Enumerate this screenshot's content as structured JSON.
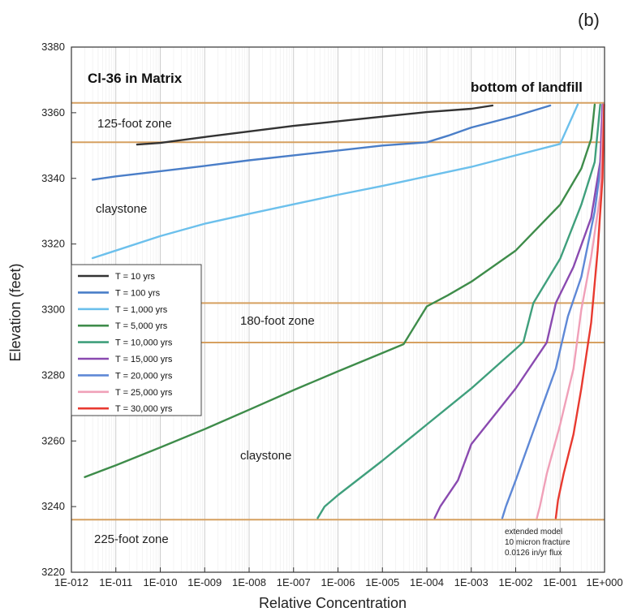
{
  "panel_label": "(b)",
  "chart_data": {
    "type": "line",
    "title": "Cl-36 in Matrix",
    "xlabel": "Relative Concentration",
    "ylabel": "Elevation (feet)",
    "x_scale": "log",
    "xlim": [
      "1E-012",
      "1E+000"
    ],
    "ylim": [
      3220,
      3380
    ],
    "x_ticks": [
      "1E-012",
      "1E-011",
      "1E-010",
      "1E-009",
      "1E-008",
      "1E-007",
      "1E-006",
      "1E-005",
      "1E-004",
      "1E-003",
      "1E-002",
      "1E-001",
      "1E+000"
    ],
    "y_ticks": [
      3220,
      3240,
      3260,
      3280,
      3300,
      3320,
      3340,
      3360,
      3380
    ],
    "grid": "vertical",
    "legend_position": "left-center",
    "boundary_lines": [
      3363,
      3351,
      3302,
      3290,
      3236
    ],
    "boundary_color": "#d6a060",
    "annotations": {
      "bottom_of_landfill": "bottom of landfill",
      "zone_125": "125-foot zone",
      "claystone_upper": "claystone",
      "zone_180": "180-foot zone",
      "claystone_lower": "claystone",
      "zone_225": "225-foot zone",
      "note_line1": "extended model",
      "note_line2": "10 micron fracture",
      "note_line3": "0.0126 in/yr flux"
    },
    "series": [
      {
        "name": "T = 10 yrs",
        "color": "#333333",
        "points": [
          [
            "3E-011",
            3350.3
          ],
          [
            "1E-010",
            3350.8
          ],
          [
            "1E-009",
            3352.6
          ],
          [
            "1E-008",
            3354.3
          ],
          [
            "1E-007",
            3356
          ],
          [
            "1E-006",
            3357.4
          ],
          [
            "1E-005",
            3358.8
          ],
          [
            "1E-004",
            3360.2
          ],
          [
            "1E-003",
            3361.2
          ],
          [
            "3E-003",
            3362.2
          ]
        ]
      },
      {
        "name": "T = 100 yrs",
        "color": "#4a7ec8",
        "points": [
          [
            "3E-012",
            3339.6
          ],
          [
            "1E-011",
            3340.6
          ],
          [
            "1E-010",
            3342.2
          ],
          [
            "1E-009",
            3343.8
          ],
          [
            "1E-008",
            3345.5
          ],
          [
            "1E-007",
            3347
          ],
          [
            "1E-006",
            3348.5
          ],
          [
            "1E-005",
            3350
          ],
          [
            "1E-004",
            3351
          ],
          [
            "3E-004",
            3353
          ],
          [
            "1E-003",
            3355.5
          ],
          [
            "1E-002",
            3359
          ],
          [
            "6E-002",
            3362.2
          ]
        ]
      },
      {
        "name": "T = 1,000 yrs",
        "color": "#6cc0ec",
        "points": [
          [
            "3E-012",
            3315.7
          ],
          [
            "1E-011",
            3318
          ],
          [
            "1E-010",
            3322.4
          ],
          [
            "1E-009",
            3326.2
          ],
          [
            "1E-008",
            3329.2
          ],
          [
            "1E-007",
            3332.1
          ],
          [
            "1E-006",
            3335
          ],
          [
            "1E-005",
            3337.7
          ],
          [
            "1E-004",
            3340.6
          ],
          [
            "1E-003",
            3343.5
          ],
          [
            "1E-002",
            3347
          ],
          [
            "1E-001",
            3350.5
          ],
          [
            "2.5E-001",
            3362.5
          ]
        ]
      },
      {
        "name": "T = 5,000 yrs",
        "color": "#3e8c4a",
        "points": [
          [
            "2E-012",
            3249
          ],
          [
            "1E-011",
            3252.6
          ],
          [
            "1E-010",
            3258
          ],
          [
            "1E-009",
            3263.6
          ],
          [
            "1E-008",
            3269.5
          ],
          [
            "1E-007",
            3275.5
          ],
          [
            "1E-006",
            3281.2
          ],
          [
            "1E-005",
            3286.8
          ],
          [
            "3E-005",
            3289.5
          ],
          [
            "1E-004",
            3301
          ],
          [
            "3E-004",
            3304.4
          ],
          [
            "1E-003",
            3308.5
          ],
          [
            "1E-002",
            3318
          ],
          [
            "1E-001",
            3332
          ],
          [
            "3E-001",
            3343
          ],
          [
            "5E-001",
            3352
          ],
          [
            "6E-001",
            3362.5
          ]
        ]
      },
      {
        "name": "T = 10,000 yrs",
        "color": "#3f9f7c",
        "points": [
          [
            "3.5E-007",
            3236.5
          ],
          [
            "5E-007",
            3240
          ],
          [
            "1E-006",
            3243.5
          ],
          [
            "1E-005",
            3254
          ],
          [
            "1E-004",
            3265
          ],
          [
            "1E-003",
            3276
          ],
          [
            "1E-002",
            3288
          ],
          [
            "1.5E-002",
            3290.2
          ],
          [
            "2.5E-002",
            3302
          ],
          [
            "1E-001",
            3315.5
          ],
          [
            "3E-001",
            3332
          ],
          [
            "6E-001",
            3345
          ],
          [
            "8E-001",
            3362.5
          ]
        ]
      },
      {
        "name": "T = 15,000 yrs",
        "color": "#8a4ab0",
        "points": [
          [
            "1.5E-004",
            3236.5
          ],
          [
            "2E-004",
            3240
          ],
          [
            "5E-004",
            3248
          ],
          [
            "1E-003",
            3259
          ],
          [
            "1E-002",
            3276
          ],
          [
            "5E-002",
            3290
          ],
          [
            "8E-002",
            3302
          ],
          [
            "2E-001",
            3313
          ],
          [
            "5E-001",
            3328
          ],
          [
            "8E-001",
            3345
          ],
          [
            "9E-001",
            3362.5
          ]
        ]
      },
      {
        "name": "T = 20,000 yrs",
        "color": "#5e88d6",
        "points": [
          [
            "5E-003",
            3236.5
          ],
          [
            "6E-003",
            3240
          ],
          [
            "1E-002",
            3248
          ],
          [
            "3E-002",
            3266
          ],
          [
            "8E-002",
            3282
          ],
          [
            "1.5E-001",
            3298
          ],
          [
            "3E-001",
            3310
          ],
          [
            "6E-001",
            3330
          ],
          [
            "9E-001",
            3348
          ],
          [
            "9.5E-001",
            3362.5
          ]
        ]
      },
      {
        "name": "T = 25,000 yrs",
        "color": "#f0a0b8",
        "points": [
          [
            "3E-002",
            3236.5
          ],
          [
            "3.5E-002",
            3240
          ],
          [
            "5E-002",
            3250
          ],
          [
            "1E-001",
            3265
          ],
          [
            "2E-001",
            3282
          ],
          [
            "3E-001",
            3300
          ],
          [
            "5E-001",
            3316
          ],
          [
            "8E-001",
            3335
          ],
          [
            "9.5E-001",
            3362.5
          ]
        ]
      },
      {
        "name": "T = 30,000 yrs",
        "color": "#e83a30",
        "points": [
          [
            "8E-002",
            3236.5
          ],
          [
            "9E-002",
            3242
          ],
          [
            "1.2E-001",
            3250
          ],
          [
            "2E-001",
            3262
          ],
          [
            "3E-001",
            3276
          ],
          [
            "5E-001",
            3296
          ],
          [
            "7E-001",
            3318
          ],
          [
            "9E-001",
            3340
          ],
          [
            "9.8E-001",
            3362.5
          ]
        ]
      }
    ]
  }
}
